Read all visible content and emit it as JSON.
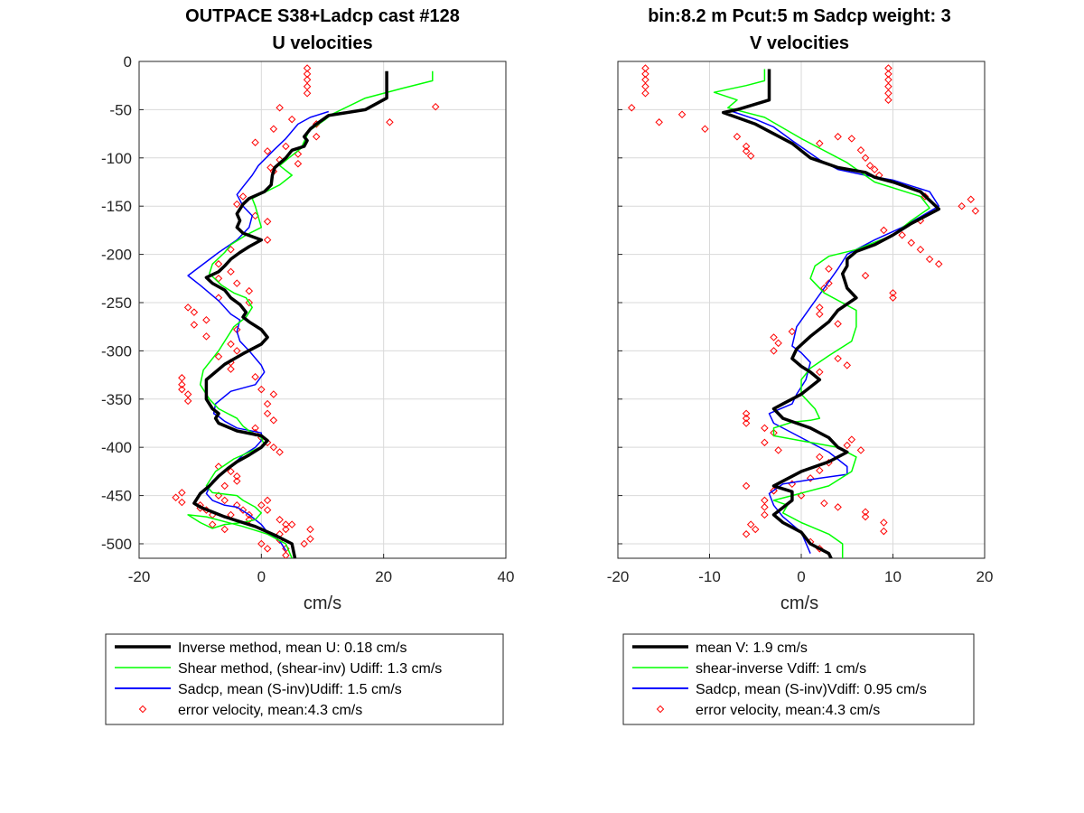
{
  "colors": {
    "inverse": "#000000",
    "shear": "#00ff00",
    "sadcp": "#0000ff",
    "error": "#ff0000",
    "grid": "#d9d9d9",
    "axis": "#262626"
  },
  "chart_data": [
    {
      "type": "line",
      "title": "OUTPACE S38+Ladcp cast #128",
      "subtitle": "U velocities",
      "xlabel": "cm/s",
      "ylabel": "",
      "xlim": [
        -20,
        40
      ],
      "ylim": [
        -515,
        0
      ],
      "xticks": [
        -20,
        0,
        20,
        40
      ],
      "yticks": [
        0,
        -50,
        -100,
        -150,
        -200,
        -250,
        -300,
        -350,
        -400,
        -450,
        -500
      ],
      "grid": true,
      "legend_position": "below",
      "legend": [
        "Inverse method, mean U:  0.18 cm/s",
        "Shear method, (shear-inv)  Udiff:  1.3 cm/s",
        "Sadcp, mean (S-inv)Udiff:  1.5 cm/s",
        "error velocity, mean:4.3 cm/s"
      ],
      "series": [
        {
          "key": "inverse",
          "style": "line-thick",
          "x": [
            20.5,
            20.5,
            17,
            11,
            9,
            8,
            7,
            7.5,
            7,
            5,
            4,
            2.2,
            1.8,
            1.6,
            0.5,
            -2,
            -3,
            -4,
            -3.5,
            -4,
            -3,
            0,
            -2,
            -3.5,
            -5,
            -6,
            -7,
            -9,
            -8,
            -6,
            -5,
            -3.5,
            -2.5,
            -3,
            -2,
            0,
            1,
            0,
            -3,
            -6,
            -9,
            -9,
            -8,
            -7,
            -7.5,
            -7,
            -4,
            0,
            1,
            0,
            -2,
            -4,
            -5.5,
            -7,
            -8.5,
            -10,
            -11,
            -10,
            -6,
            -1,
            2.5,
            5,
            5.5
          ],
          "y": [
            -10,
            -38,
            -50,
            -56,
            -65,
            -70,
            -78,
            -82,
            -88,
            -92,
            -100,
            -110,
            -118,
            -128,
            -135,
            -142,
            -148,
            -158,
            -165,
            -172,
            -178,
            -185,
            -192,
            -198,
            -205,
            -212,
            -218,
            -224,
            -230,
            -237,
            -245,
            -252,
            -260,
            -265,
            -270,
            -278,
            -286,
            -293,
            -303,
            -314,
            -330,
            -350,
            -360,
            -365,
            -370,
            -375,
            -383,
            -388,
            -393,
            -400,
            -408,
            -415,
            -422,
            -430,
            -440,
            -448,
            -458,
            -462,
            -472,
            -482,
            -492,
            -500,
            -515
          ]
        },
        {
          "key": "shear",
          "style": "line",
          "x": [
            28,
            28,
            23,
            17,
            11.5,
            10.5,
            7.8,
            6.5,
            4.5,
            3,
            5,
            3,
            -1.5,
            -1,
            0,
            -2.5,
            -5,
            -6,
            -8,
            -8.5,
            -6.5,
            -4.5,
            -2.5,
            -1.5,
            -2.5,
            -4.5,
            -7,
            -9.5,
            -10,
            -8.5,
            -7,
            -4,
            -3,
            -2,
            0,
            0.5,
            -2,
            -4.5,
            -7.5,
            -9,
            -8,
            -4,
            -3,
            -1,
            0,
            -1,
            -3,
            -6,
            -8,
            -10,
            -12,
            -9,
            -3,
            1,
            4,
            5
          ],
          "y": [
            -10,
            -20,
            -28,
            -38,
            -55,
            -60,
            -72,
            -90,
            -100,
            -108,
            -118,
            -128,
            -142,
            -150,
            -172,
            -180,
            -190,
            -198,
            -210,
            -220,
            -232,
            -240,
            -245,
            -255,
            -265,
            -275,
            -300,
            -320,
            -335,
            -350,
            -360,
            -370,
            -378,
            -383,
            -390,
            -398,
            -405,
            -412,
            -425,
            -440,
            -447,
            -450,
            -455,
            -462,
            -468,
            -475,
            -478,
            -480,
            -484,
            -478,
            -470,
            -472,
            -482,
            -490,
            -500,
            -515
          ]
        },
        {
          "key": "sadcp",
          "style": "line",
          "x": [
            11,
            8,
            6,
            4,
            2,
            -0.5,
            -1.5,
            -3,
            -4,
            -3,
            -1.5,
            -2,
            -4,
            -7,
            -12,
            -10,
            -7,
            -5,
            -3.5,
            -4,
            -3.5,
            -2,
            0,
            0.5,
            -1,
            -5,
            -7.5,
            -7.8,
            -7,
            -6,
            -4,
            0,
            0,
            -1,
            -3,
            -5,
            -8,
            -9,
            -8,
            -6,
            -4,
            -2,
            0,
            1,
            3,
            4
          ],
          "y": [
            -52,
            -58,
            -65,
            -80,
            -92,
            -108,
            -118,
            -130,
            -138,
            -150,
            -160,
            -172,
            -185,
            -198,
            -222,
            -232,
            -248,
            -262,
            -268,
            -280,
            -290,
            -300,
            -315,
            -322,
            -335,
            -342,
            -355,
            -365,
            -368,
            -373,
            -380,
            -385,
            -393,
            -400,
            -408,
            -420,
            -435,
            -448,
            -455,
            -460,
            -462,
            -470,
            -480,
            -488,
            -497,
            -507
          ]
        },
        {
          "key": "error",
          "style": "marker",
          "x": [
            7.5,
            7.5,
            7.5,
            7.5,
            7.5,
            28.5,
            21,
            3,
            5,
            9,
            2,
            9,
            -1,
            4,
            1,
            6,
            3,
            6,
            1.5,
            2,
            -3,
            -4,
            -1,
            1,
            1,
            -5,
            -7,
            -5,
            -7,
            -4,
            -2,
            -7,
            -2,
            -12,
            -11,
            -9,
            -11,
            -4,
            -9,
            -5,
            -4,
            -7,
            -5,
            -5,
            -1,
            0,
            2,
            1,
            1,
            2,
            -1,
            -1,
            0,
            1,
            2,
            3,
            -7,
            -5,
            -4,
            -4,
            -6,
            1,
            0,
            1,
            -13,
            -13,
            -13,
            -12,
            -12,
            -7,
            -6,
            -4,
            -3,
            -2,
            3,
            4,
            4,
            3,
            3,
            0,
            1,
            -6,
            -8,
            -8,
            -9,
            -10,
            -13,
            -14,
            -13,
            -10,
            -5,
            -2,
            5,
            8,
            8,
            7,
            4,
            4,
            4
          ],
          "y": [
            -7,
            -13,
            -19,
            -26,
            -33,
            -47,
            -63,
            -48,
            -60,
            -65,
            -70,
            -78,
            -84,
            -88,
            -93,
            -96,
            -102,
            -106,
            -110,
            -114,
            -140,
            -148,
            -160,
            -166,
            -185,
            -195,
            -210,
            -218,
            -225,
            -230,
            -238,
            -245,
            -250,
            -255,
            -260,
            -268,
            -273,
            -278,
            -285,
            -293,
            -300,
            -306,
            -312,
            -319,
            -327,
            -340,
            -345,
            -355,
            -365,
            -372,
            -380,
            -385,
            -390,
            -395,
            -400,
            -405,
            -420,
            -425,
            -430,
            -435,
            -440,
            -455,
            -460,
            -465,
            -328,
            -335,
            -340,
            -345,
            -352,
            -450,
            -455,
            -460,
            -465,
            -470,
            -475,
            -480,
            -485,
            -490,
            -496,
            -500,
            -505,
            -485,
            -480,
            -470,
            -465,
            -460,
            -447,
            -452,
            -457,
            -463,
            -470,
            -475,
            -480,
            -485,
            -495,
            -500,
            -505,
            -512,
            -520
          ]
        }
      ]
    },
    {
      "type": "line",
      "title": "bin:8.2 m  Pcut:5 m  Sadcp weight: 3",
      "subtitle": "V velocities",
      "xlabel": "cm/s",
      "ylabel": "",
      "xlim": [
        -20,
        20
      ],
      "ylim": [
        -515,
        0
      ],
      "xticks": [
        -20,
        -10,
        0,
        10,
        20
      ],
      "yticks": [
        0,
        -50,
        -100,
        -150,
        -200,
        -250,
        -300,
        -350,
        -400,
        -450,
        -500
      ],
      "grid": true,
      "legend_position": "below",
      "legend": [
        "mean V:  1.9 cm/s",
        "shear-inverse Vdiff:  1 cm/s",
        "Sadcp, mean (S-inv)Vdiff: 0.95 cm/s",
        "error velocity, mean:4.3 cm/s"
      ],
      "series": [
        {
          "key": "inverse",
          "style": "line-thick",
          "x": [
            -3.5,
            -3.5,
            -7,
            -8.5,
            -5,
            -3,
            -1,
            1,
            4,
            7,
            8,
            10,
            13,
            15,
            12,
            10,
            8,
            6,
            5,
            5,
            4.5,
            5,
            6,
            4,
            3,
            1,
            -0.5,
            -1,
            0,
            1,
            2,
            0,
            -2,
            -3,
            -2,
            1,
            3,
            4,
            5,
            3,
            0,
            -2,
            -3,
            -1,
            -1,
            -3,
            -2,
            0,
            1,
            3,
            3.5
          ],
          "y": [
            -8,
            -40,
            -50,
            -53,
            -65,
            -75,
            -85,
            -100,
            -110,
            -115,
            -120,
            -125,
            -135,
            -153,
            -168,
            -180,
            -190,
            -197,
            -205,
            -212,
            -220,
            -235,
            -245,
            -258,
            -270,
            -285,
            -298,
            -308,
            -316,
            -322,
            -330,
            -345,
            -355,
            -360,
            -370,
            -380,
            -390,
            -400,
            -405,
            -415,
            -425,
            -435,
            -440,
            -446,
            -455,
            -470,
            -478,
            -488,
            -500,
            -510,
            -520
          ]
        },
        {
          "key": "shear",
          "style": "line",
          "x": [
            -4,
            -4,
            -6,
            -9.5,
            -7,
            -8,
            -4,
            0,
            5,
            8,
            13,
            14,
            12,
            10,
            6,
            3,
            1.5,
            1,
            2.5,
            6,
            6,
            5.5,
            3,
            1,
            0,
            0,
            1.5,
            2,
            1,
            -1,
            -3,
            -3,
            1,
            4,
            6,
            5.5,
            3,
            -1,
            -3,
            -1.5,
            -2,
            0,
            3,
            4.5,
            4.5
          ],
          "y": [
            -8,
            -20,
            -25,
            -32,
            -40,
            -48,
            -58,
            -80,
            -105,
            -125,
            -140,
            -152,
            -165,
            -180,
            -195,
            -202,
            -212,
            -225,
            -240,
            -258,
            -275,
            -290,
            -305,
            -318,
            -330,
            -345,
            -360,
            -370,
            -372,
            -374,
            -380,
            -388,
            -395,
            -400,
            -410,
            -425,
            -440,
            -450,
            -455,
            -460,
            -468,
            -478,
            -490,
            -500,
            -515
          ]
        },
        {
          "key": "sadcp",
          "style": "line",
          "x": [
            -7.5,
            -5,
            -3,
            -1,
            2,
            4,
            7,
            10,
            14,
            15,
            11,
            8,
            5,
            4,
            2.5,
            1,
            -0.5,
            -1,
            0,
            1,
            0.5,
            -0.5,
            -1,
            -3.5,
            -3,
            0,
            3,
            5,
            5,
            2,
            -2,
            -3.5,
            -3,
            -2,
            0,
            1
          ],
          "y": [
            -52,
            -60,
            -68,
            -82,
            -102,
            -112,
            -118,
            -123,
            -135,
            -150,
            -172,
            -185,
            -200,
            -215,
            -235,
            -255,
            -275,
            -295,
            -302,
            -312,
            -330,
            -345,
            -355,
            -365,
            -375,
            -390,
            -405,
            -420,
            -428,
            -432,
            -438,
            -448,
            -460,
            -472,
            -488,
            -510
          ]
        },
        {
          "key": "error",
          "style": "marker",
          "x": [
            -17,
            -17,
            -17,
            -17,
            -17,
            -18.5,
            9.5,
            9.5,
            9.5,
            9.5,
            9.5,
            9.5,
            -15.5,
            -13,
            -10.5,
            -7,
            -6,
            -6,
            -5.5,
            2,
            4,
            5.5,
            6.5,
            7,
            7.5,
            8,
            8.5,
            13.5,
            17.5,
            18.5,
            19,
            13,
            9,
            11,
            12,
            13,
            14,
            15,
            3,
            7,
            3,
            2.5,
            10,
            10,
            2,
            2,
            4,
            -1,
            -3,
            -2.5,
            -3,
            4,
            5,
            2,
            -6,
            -6,
            -6,
            -4,
            -3,
            -4,
            -2.5,
            -6,
            -3,
            0,
            2.5,
            4,
            7,
            7,
            9,
            9,
            -4,
            -4,
            -4,
            -5.5,
            -5,
            -6,
            -3,
            -1,
            1,
            2,
            3,
            2,
            6.5,
            5,
            5.5,
            1,
            2
          ],
          "y": [
            -7,
            -13,
            -19,
            -26,
            -33,
            -48,
            -7,
            -13,
            -19,
            -26,
            -33,
            -40,
            -63,
            -55,
            -70,
            -78,
            -88,
            -93,
            -98,
            -85,
            -78,
            -80,
            -92,
            -100,
            -108,
            -112,
            -118,
            -140,
            -150,
            -143,
            -155,
            -165,
            -175,
            -180,
            -188,
            -195,
            -205,
            -210,
            -215,
            -222,
            -230,
            -235,
            -240,
            -245,
            -255,
            -262,
            -272,
            -280,
            -286,
            -292,
            -300,
            -308,
            -315,
            -322,
            -365,
            -370,
            -375,
            -380,
            -385,
            -395,
            -403,
            -440,
            -445,
            -450,
            -458,
            -462,
            -467,
            -472,
            -478,
            -487,
            -455,
            -462,
            -470,
            -480,
            -485,
            -490,
            -445,
            -438,
            -432,
            -424,
            -416,
            -410,
            -403,
            -398,
            -392,
            -498,
            -505
          ]
        }
      ]
    }
  ]
}
